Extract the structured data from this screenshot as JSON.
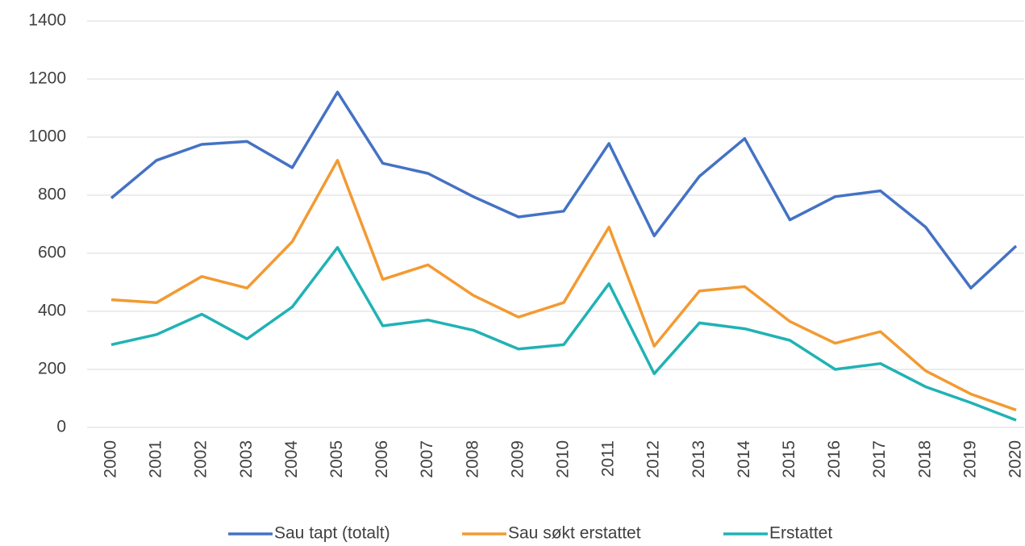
{
  "chart_data": {
    "type": "line",
    "categories": [
      "2000",
      "2001",
      "2002",
      "2003",
      "2004",
      "2005",
      "2006",
      "2007",
      "2008",
      "2009",
      "2010",
      "2011",
      "2012",
      "2013",
      "2014",
      "2015",
      "2016",
      "2017",
      "2018",
      "2019",
      "2020"
    ],
    "series": [
      {
        "name": "Sau tapt (totalt)",
        "color": "#4472c4",
        "values": [
          790,
          920,
          975,
          985,
          895,
          1155,
          910,
          875,
          795,
          725,
          745,
          978,
          660,
          865,
          995,
          715,
          795,
          815,
          690,
          480,
          625
        ]
      },
      {
        "name": "Sau søkt erstattet",
        "color": "#f39a32",
        "values": [
          440,
          430,
          520,
          480,
          640,
          920,
          510,
          560,
          455,
          380,
          430,
          690,
          280,
          470,
          485,
          365,
          290,
          330,
          195,
          115,
          60
        ]
      },
      {
        "name": "Erstattet",
        "color": "#20b2b5",
        "values": [
          285,
          320,
          390,
          305,
          415,
          620,
          350,
          370,
          335,
          270,
          285,
          495,
          185,
          360,
          340,
          300,
          200,
          220,
          140,
          85,
          25
        ]
      }
    ],
    "ylim": [
      0,
      1400
    ],
    "yticks": [
      0,
      200,
      400,
      600,
      800,
      1000,
      1200,
      1400
    ],
    "grid": true,
    "legend": "bottom"
  }
}
